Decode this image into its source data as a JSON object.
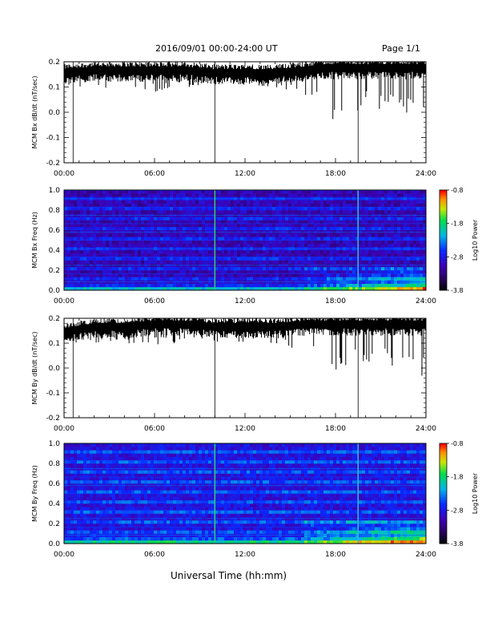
{
  "header": {
    "title": "2016/09/01   00:00-24:00 UT",
    "page": "Page 1/1"
  },
  "footer": {
    "xlabel": "Universal Time (hh:mm)"
  },
  "chart_data": [
    {
      "type": "line",
      "ylabel": "MCM Bx dB/dt (nT/sec)",
      "xticks": [
        "00:00",
        "06:00",
        "12:00",
        "18:00",
        "24:00"
      ],
      "xlim": [
        0,
        24
      ],
      "ylim": [
        -0.2,
        0.2
      ],
      "yticks": [
        "-0.2",
        "-0.1",
        "0.0",
        "0.1",
        "0.2"
      ],
      "spikes_hours": [
        0.6,
        10.0,
        19.5
      ],
      "envelope": {
        "hours": [
          0,
          2,
          4,
          6,
          8,
          10,
          12,
          14,
          16,
          17,
          18,
          20,
          22,
          24
        ],
        "upper": [
          0.18,
          0.19,
          0.19,
          0.19,
          0.19,
          0.18,
          0.18,
          0.18,
          0.19,
          0.2,
          0.2,
          0.2,
          0.2,
          0.2
        ],
        "lower": [
          0.1,
          0.09,
          0.1,
          0.08,
          0.1,
          0.1,
          0.11,
          0.1,
          0.06,
          0.0,
          -0.05,
          0.02,
          0.0,
          -0.05
        ]
      }
    },
    {
      "type": "heatmap",
      "ylabel": "MCM Bx Freq (Hz)",
      "xticks": [
        "00:00",
        "06:00",
        "12:00",
        "18:00",
        "24:00"
      ],
      "xlim": [
        0,
        24
      ],
      "ylim": [
        0.0,
        1.0
      ],
      "yticks": [
        "0.0",
        "0.2",
        "0.4",
        "0.6",
        "0.8",
        "1.0"
      ],
      "colorbar": {
        "label": "Log10 Power",
        "ticks": [
          "-0.8",
          "-1.8",
          "-2.8",
          "-3.8"
        ],
        "range": [
          -3.8,
          -0.8
        ]
      },
      "vertical_lines_hours": [
        10.0,
        19.5
      ]
    },
    {
      "type": "line",
      "ylabel": "MCM By dB/dt (nT/sec)",
      "xticks": [
        "00:00",
        "06:00",
        "12:00",
        "18:00",
        "24:00"
      ],
      "xlim": [
        0,
        24
      ],
      "ylim": [
        -0.2,
        0.2
      ],
      "yticks": [
        "-0.2",
        "-0.1",
        "0.0",
        "0.1",
        "0.2"
      ],
      "spikes_hours": [
        0.6,
        10.0,
        19.5
      ],
      "envelope": {
        "hours": [
          0,
          2,
          4,
          6,
          8,
          10,
          12,
          14,
          16,
          17,
          18,
          20,
          22,
          24
        ],
        "upper": [
          0.17,
          0.19,
          0.19,
          0.2,
          0.2,
          0.19,
          0.19,
          0.19,
          0.2,
          0.2,
          0.2,
          0.2,
          0.2,
          0.2
        ],
        "lower": [
          0.11,
          0.08,
          0.1,
          0.09,
          0.1,
          0.1,
          0.1,
          0.1,
          0.06,
          0.0,
          -0.05,
          0.02,
          0.0,
          -0.05
        ]
      }
    },
    {
      "type": "heatmap",
      "ylabel": "MCM By Freq (Hz)",
      "xticks": [
        "00:00",
        "06:00",
        "12:00",
        "18:00",
        "24:00"
      ],
      "xlim": [
        0,
        24
      ],
      "ylim": [
        0.0,
        1.0
      ],
      "yticks": [
        "0.0",
        "0.2",
        "0.4",
        "0.6",
        "0.8",
        "1.0"
      ],
      "colorbar": {
        "label": "Log10 Power",
        "ticks": [
          "-0.8",
          "-1.8",
          "-2.8",
          "-3.8"
        ],
        "range": [
          -3.8,
          -0.8
        ]
      },
      "vertical_lines_hours": [
        10.0,
        19.5
      ]
    }
  ]
}
